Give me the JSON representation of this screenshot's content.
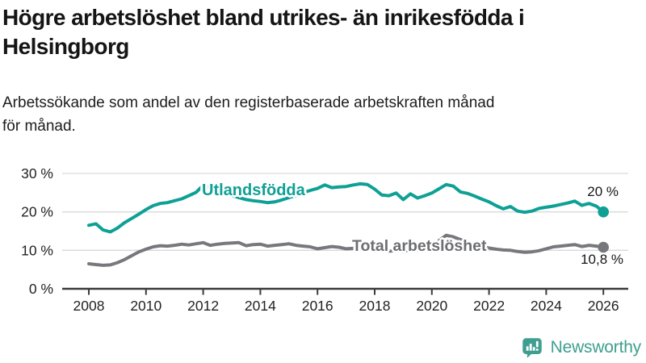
{
  "title": "Högre arbetslöshet bland utrikes- än inrikesfödda i\nHelsingborg",
  "subtitle": "Arbetssökande som andel av den registerbaserade arbetskraften månad\nför månad.",
  "chart_data": {
    "type": "line",
    "xlabel": "",
    "ylabel": "",
    "xlim": [
      2008,
      2026.3
    ],
    "ylim": [
      0,
      30
    ],
    "grid": "horizontal",
    "x_start": 2008,
    "x_step": 0.25,
    "x_ticks": [
      {
        "v": 2008,
        "label": "2008"
      },
      {
        "v": 2010,
        "label": "2010"
      },
      {
        "v": 2012,
        "label": "2012"
      },
      {
        "v": 2014,
        "label": "2014"
      },
      {
        "v": 2016,
        "label": "2016"
      },
      {
        "v": 2018,
        "label": "2018"
      },
      {
        "v": 2020,
        "label": "2020"
      },
      {
        "v": 2022,
        "label": "2022"
      },
      {
        "v": 2024,
        "label": "2024"
      },
      {
        "v": 2026,
        "label": "2026"
      }
    ],
    "y_ticks": [
      {
        "v": 0,
        "label": "0 %"
      },
      {
        "v": 10,
        "label": "10 %"
      },
      {
        "v": 20,
        "label": "20 %"
      },
      {
        "v": 30,
        "label": "30 %"
      }
    ],
    "series": [
      {
        "name": "Utlandsfödda",
        "color": "#0fa095",
        "end_label": "20 %",
        "end_value": 20,
        "values": [
          16.5,
          16.9,
          15.3,
          14.8,
          15.8,
          17.2,
          18.3,
          19.4,
          20.6,
          21.6,
          22.2,
          22.4,
          22.9,
          23.4,
          24.2,
          25.1,
          26.9,
          26.4,
          25.6,
          24.9,
          24.3,
          23.7,
          23.2,
          22.9,
          22.7,
          22.4,
          22.6,
          23.1,
          23.7,
          24.3,
          25.0,
          25.6,
          26.1,
          27.0,
          26.3,
          26.5,
          26.6,
          27.0,
          27.3,
          27.1,
          25.9,
          24.4,
          24.2,
          24.9,
          23.2,
          24.7,
          23.6,
          24.2,
          24.9,
          26.0,
          27.1,
          26.7,
          25.2,
          24.8,
          24.1,
          23.3,
          22.6,
          21.6,
          20.8,
          21.4,
          20.2,
          19.9,
          20.2,
          20.9,
          21.2,
          21.5,
          21.9,
          22.3,
          22.8,
          21.7,
          22.2,
          21.5,
          20.0
        ]
      },
      {
        "name": "Total arbetslöshet",
        "color": "#77787c",
        "end_label": "10,8 %",
        "end_value": 10.8,
        "values": [
          6.5,
          6.3,
          6.1,
          6.2,
          6.8,
          7.6,
          8.6,
          9.6,
          10.3,
          10.9,
          11.2,
          11.1,
          11.3,
          11.6,
          11.4,
          11.7,
          12.0,
          11.3,
          11.6,
          11.8,
          11.9,
          12.0,
          11.2,
          11.5,
          11.6,
          11.1,
          11.3,
          11.5,
          11.7,
          11.3,
          11.1,
          10.9,
          10.4,
          10.7,
          11.0,
          10.8,
          10.4,
          10.5,
          10.3,
          10.2,
          10.0,
          9.9,
          9.8,
          9.9,
          9.8,
          9.9,
          10.0,
          10.2,
          10.6,
          12.5,
          13.9,
          13.5,
          12.8,
          12.2,
          11.6,
          11.0,
          10.6,
          10.3,
          10.1,
          10.0,
          9.7,
          9.5,
          9.6,
          9.9,
          10.4,
          10.9,
          11.1,
          11.3,
          11.5,
          11.0,
          11.3,
          11.1,
          10.8
        ]
      }
    ],
    "colors": {
      "gridline": "#d9d9d9",
      "axis": "#3a3a3a",
      "tick_text": "#222222"
    }
  },
  "branding": {
    "logo_text": "Newsworthy",
    "logo_icon": "bar-chart-speech-bubble-icon",
    "logo_color": "#3f9e90"
  }
}
